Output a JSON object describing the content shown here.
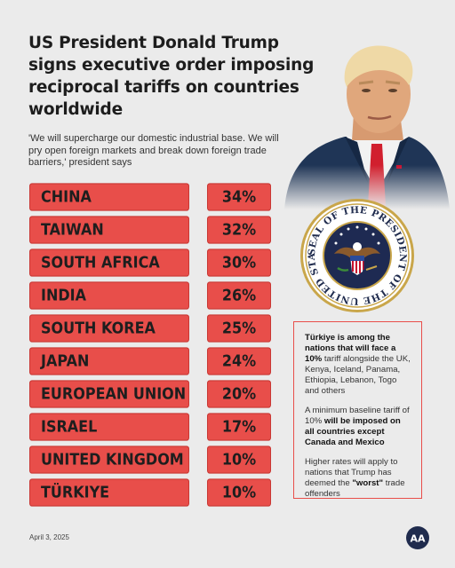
{
  "header": {
    "title": "US President Donald Trump signs executive order imposing reciprocal tariffs on countries worldwide",
    "quote": "'We will supercharge our domestic industrial base. We will pry open foreign markets and break down foreign trade barriers,' president says"
  },
  "seal": {
    "text": "SEAL OF THE PRESIDENT OF THE UNITED STATES"
  },
  "tariffs": [
    {
      "country": "CHINA",
      "rate": "34%"
    },
    {
      "country": "TAIWAN",
      "rate": "32%"
    },
    {
      "country": "SOUTH AFRICA",
      "rate": "30%"
    },
    {
      "country": "INDIA",
      "rate": "26%"
    },
    {
      "country": "SOUTH KOREA",
      "rate": "25%"
    },
    {
      "country": "JAPAN",
      "rate": "24%"
    },
    {
      "country": "EUROPEAN UNION",
      "rate": "20%"
    },
    {
      "country": "ISRAEL",
      "rate": "17%"
    },
    {
      "country": "UNITED KINGDOM",
      "rate": "10%"
    },
    {
      "country": "TÜRKIYE",
      "rate": "10%"
    }
  ],
  "info": {
    "p1_bold": "Türkiye is among the nations that will face a 10%",
    "p1_rest": " tariff alongside the UK, Kenya, Iceland, Panama, Ethiopia, Lebanon, Togo and others",
    "p2_start": "A minimum baseline tariff of 10% ",
    "p2_bold": "will be imposed on all countries except Canada and Mexico",
    "p3_start": "Higher rates will apply to nations that Trump has deemed the ",
    "p3_bold": "\"worst\"",
    "p3_end": " trade offenders"
  },
  "footer": {
    "date": "April 3, 2025",
    "logo_text": "AA"
  },
  "colors": {
    "bar": "#e84e4a",
    "background": "#ebebeb"
  }
}
